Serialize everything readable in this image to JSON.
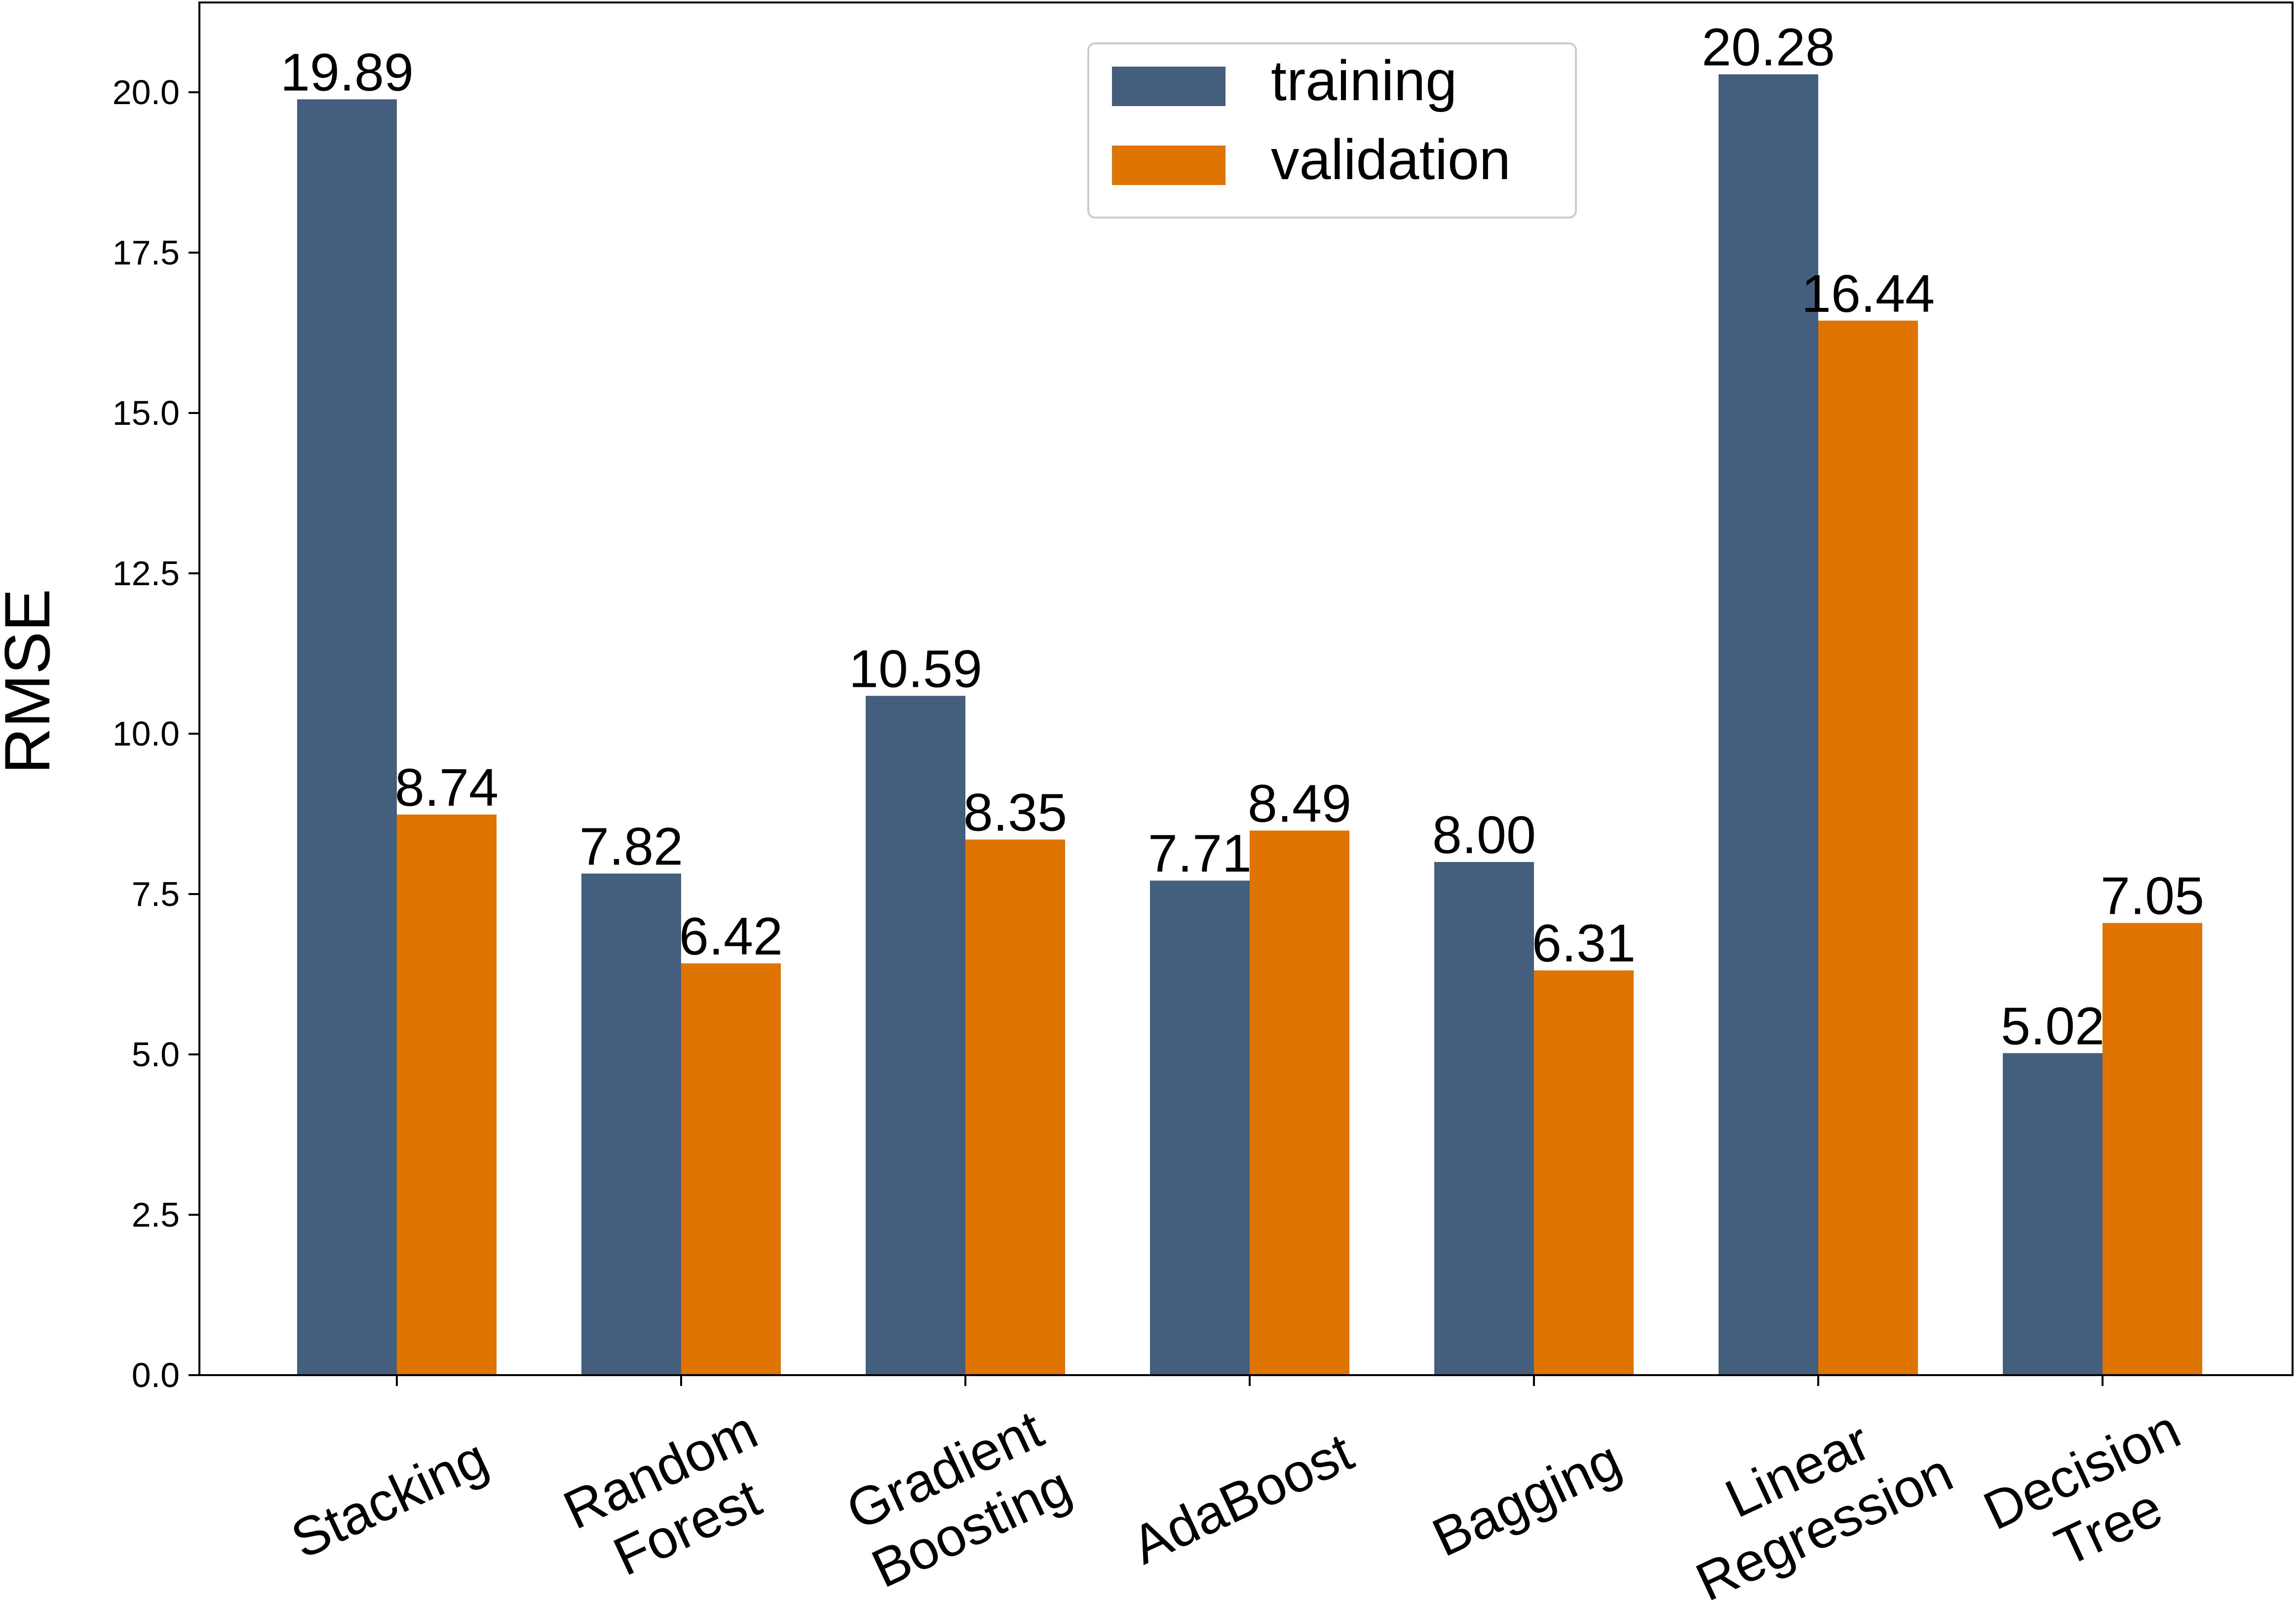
{
  "chart_data": {
    "type": "bar",
    "categories": [
      [
        "Stacking"
      ],
      [
        "Random",
        "Forest"
      ],
      [
        "Gradient",
        "Boosting"
      ],
      [
        "AdaBoost"
      ],
      [
        "Bagging"
      ],
      [
        "Linear",
        "Regression"
      ],
      [
        "Decision",
        "Tree"
      ]
    ],
    "series": [
      {
        "name": "training",
        "color": "#445e7d",
        "values": [
          19.89,
          7.82,
          10.59,
          7.71,
          8.0,
          20.28,
          5.02
        ],
        "labels": [
          "19.89",
          "7.82",
          "10.59",
          "7.71",
          "8.00",
          "20.28",
          "5.02"
        ]
      },
      {
        "name": "validation",
        "color": "#e07400",
        "values": [
          8.74,
          6.42,
          8.35,
          8.49,
          6.31,
          16.44,
          7.05
        ],
        "labels": [
          "8.74",
          "6.42",
          "8.35",
          "8.49",
          "6.31",
          "16.44",
          "7.05"
        ]
      }
    ],
    "ylabel": "RMSE",
    "xlabel": "",
    "title": "",
    "ylim": [
      0,
      21.4
    ],
    "yticks": [
      0,
      2.5,
      5,
      7.5,
      10,
      12.5,
      15,
      17.5,
      20
    ],
    "ytick_labels": [
      "0.0",
      "2.5",
      "5.0",
      "7.5",
      "10.0",
      "12.5",
      "15.0",
      "17.5",
      "20.0"
    ],
    "grid": false,
    "legend_position": "top-center"
  }
}
